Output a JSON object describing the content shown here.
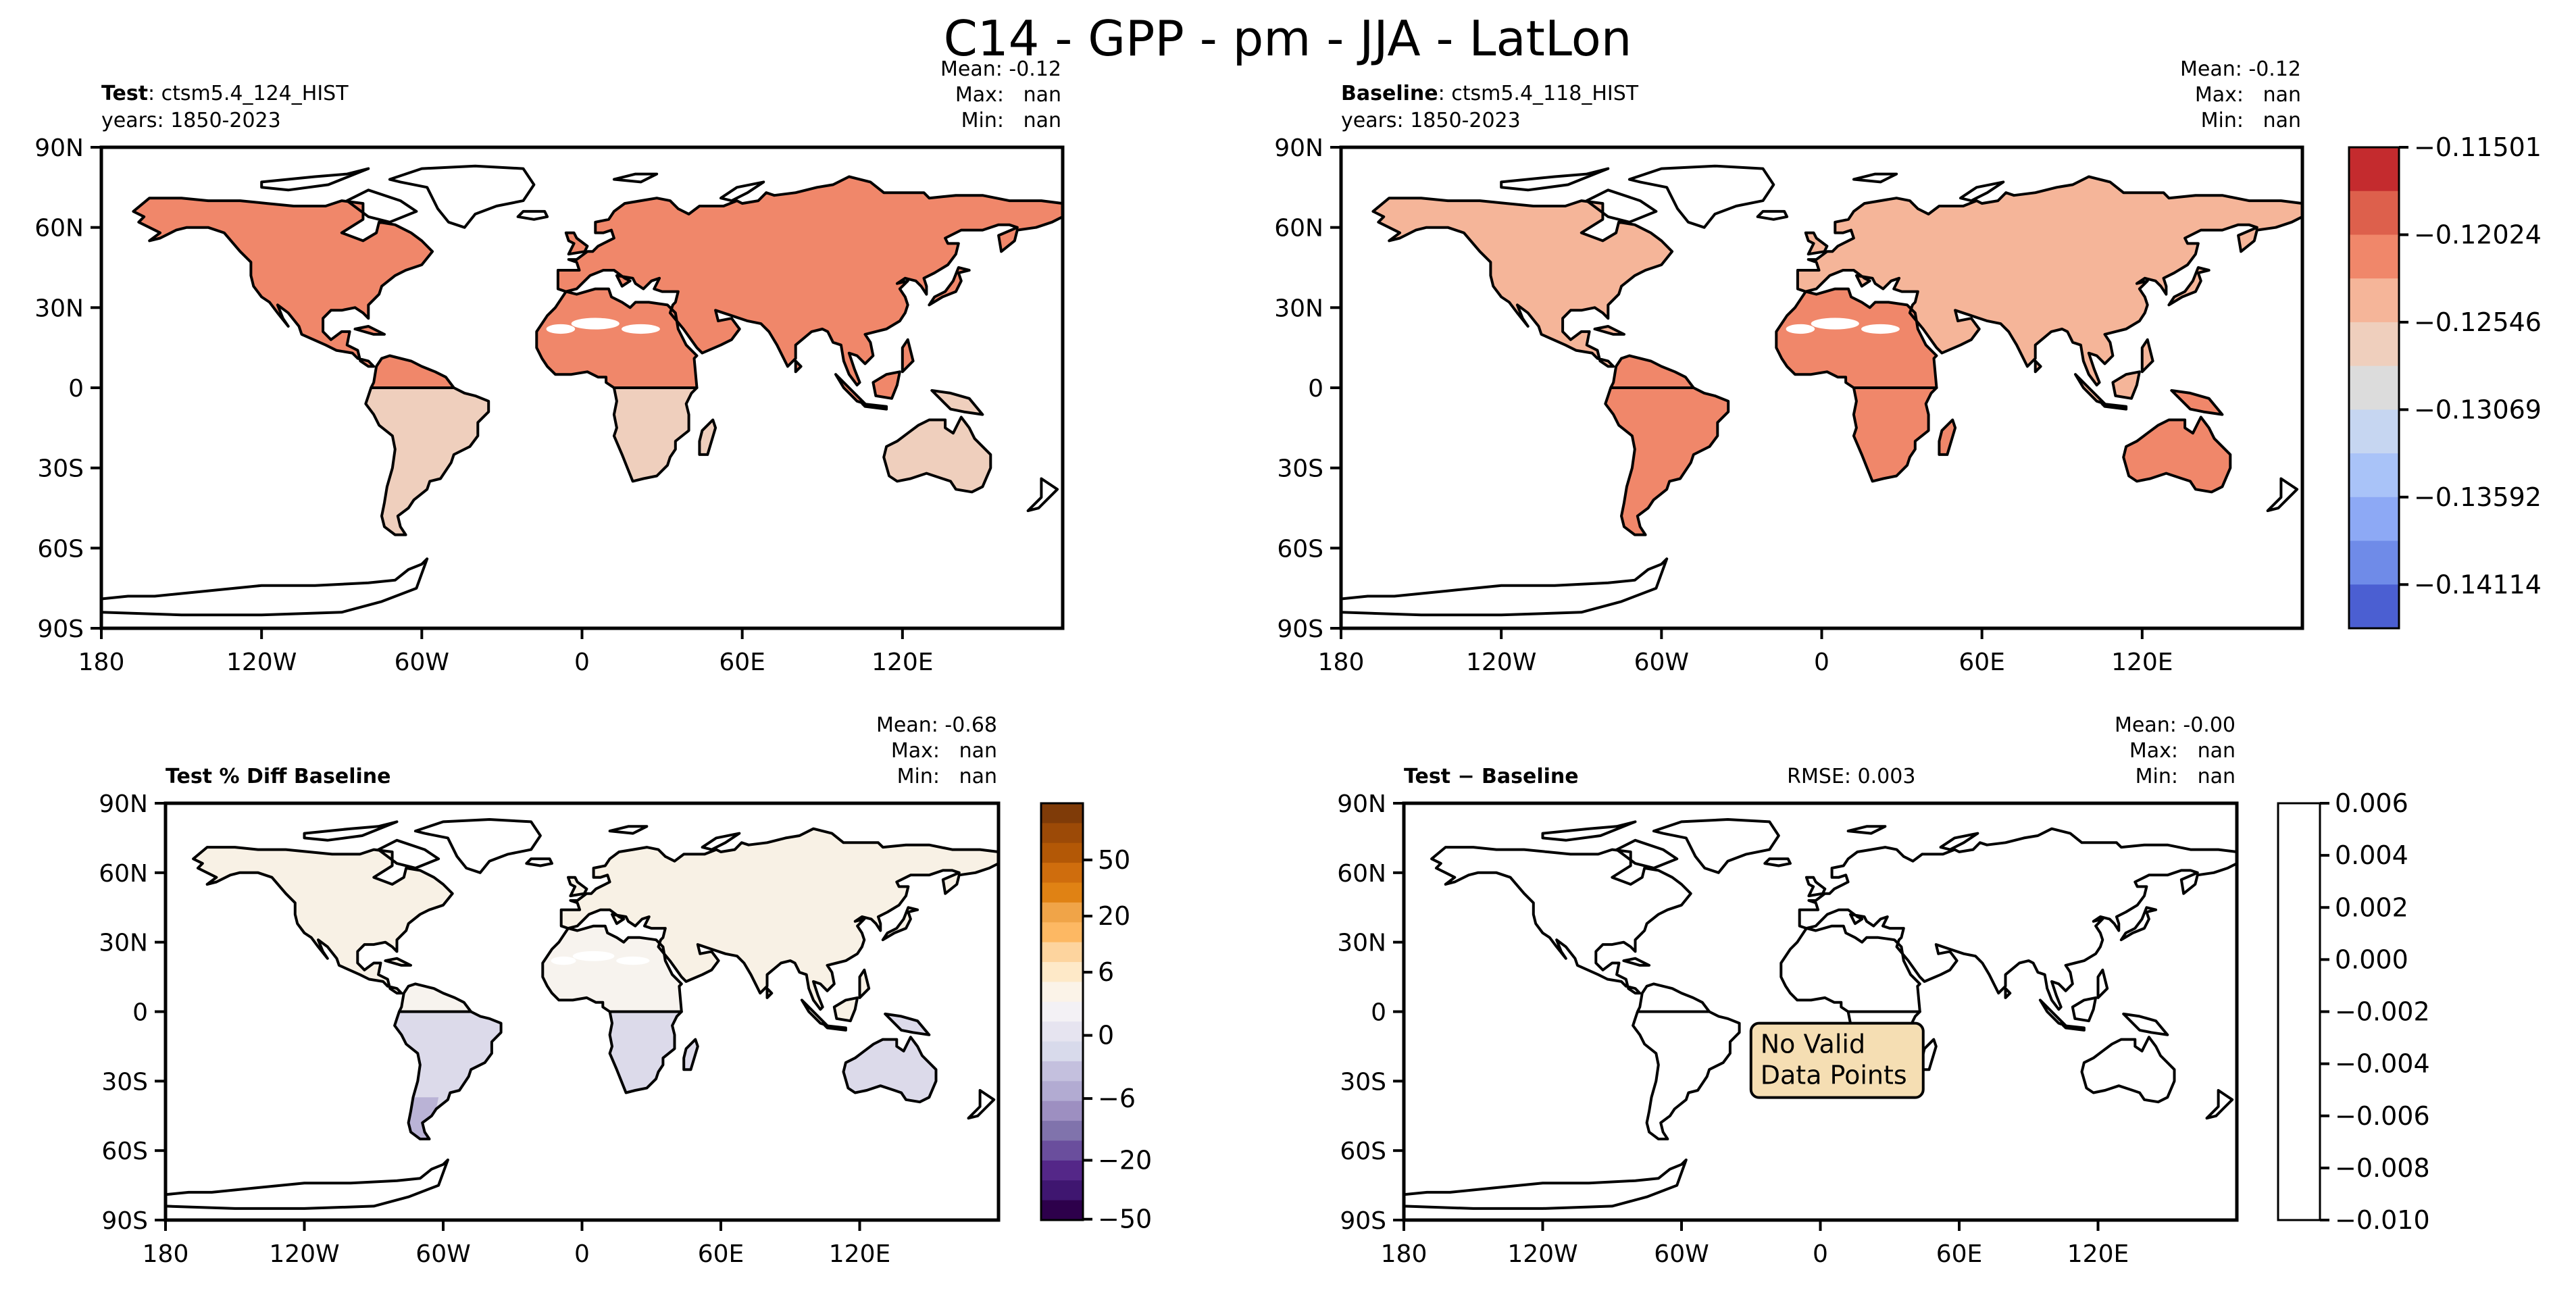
{
  "figure_title": "C14 - GPP - pm - JJA - LatLon",
  "chart_data": [
    {
      "type": "heatmap",
      "panel": "test",
      "title_bold": "Test",
      "title_rest": ": ctsm5.4_124_HIST",
      "years": "years: 1850-2023",
      "stats": {
        "mean": "Mean: -0.12",
        "max": "Max:   nan",
        "min": "Min:   nan"
      },
      "x_ticks": [
        "180",
        "120W",
        "60W",
        "0",
        "60E",
        "120E"
      ],
      "y_ticks": [
        "90N",
        "60N",
        "30N",
        "0",
        "30S",
        "60S",
        "90S"
      ],
      "xlim": [
        -180,
        180
      ],
      "ylim": [
        -90,
        90
      ],
      "regions": [
        {
          "name": "north_america",
          "value": -0.12
        },
        {
          "name": "greenland_ice",
          "value": null
        },
        {
          "name": "eurasia",
          "value": -0.12
        },
        {
          "name": "north_africa",
          "value": -0.12
        },
        {
          "name": "south_america",
          "value": -0.1275
        },
        {
          "name": "southern_africa",
          "value": -0.1275
        },
        {
          "name": "australia",
          "value": -0.1275
        },
        {
          "name": "antarctica",
          "value": null
        }
      ]
    },
    {
      "type": "heatmap",
      "panel": "baseline",
      "title_bold": "Baseline",
      "title_rest": ": ctsm5.4_118_HIST",
      "years": "years: 1850-2023",
      "stats": {
        "mean": "Mean: -0.12",
        "max": "Max:   nan",
        "min": "Min:   nan"
      },
      "x_ticks": [
        "180",
        "120W",
        "60W",
        "0",
        "60E",
        "120E"
      ],
      "y_ticks": [
        "90N",
        "60N",
        "30N",
        "0",
        "30S",
        "60S",
        "90S"
      ],
      "xlim": [
        -180,
        180
      ],
      "ylim": [
        -90,
        90
      ],
      "regions": [
        {
          "name": "north_america",
          "value": -0.1225
        },
        {
          "name": "greenland_ice",
          "value": null
        },
        {
          "name": "eurasia",
          "value": -0.1225
        },
        {
          "name": "north_africa",
          "value": -0.12
        },
        {
          "name": "south_america",
          "value": -0.12
        },
        {
          "name": "southern_africa",
          "value": -0.12
        },
        {
          "name": "australia",
          "value": -0.12
        },
        {
          "name": "antarctica",
          "value": null
        }
      ],
      "colorbar": {
        "tick_labels": [
          "−0.11501",
          "−0.12024",
          "−0.12546",
          "−0.13069",
          "−0.13592",
          "−0.14114"
        ],
        "colors": [
          "#c42b2e",
          "#dd604c",
          "#f0876a",
          "#f5b599",
          "#efcfbd",
          "#dcdcdc",
          "#c6d6f1",
          "#a9c3f8",
          "#8da9f5",
          "#6f8be8",
          "#4b5fd2"
        ]
      }
    },
    {
      "type": "heatmap",
      "panel": "pct_diff",
      "title_bold": "Test % Diff Baseline",
      "stats": {
        "mean": "Mean: -0.68",
        "max": "Max:   nan",
        "min": "Min:   nan"
      },
      "x_ticks": [
        "180",
        "120W",
        "60W",
        "0",
        "60E",
        "120E"
      ],
      "y_ticks": [
        "90N",
        "60N",
        "30N",
        "0",
        "30S",
        "60S",
        "90S"
      ],
      "xlim": [
        -180,
        180
      ],
      "ylim": [
        -90,
        90
      ],
      "regions": [
        {
          "name": "north_america",
          "value": 2
        },
        {
          "name": "eurasia",
          "value": 2
        },
        {
          "name": "north_africa",
          "value": 0.5
        },
        {
          "name": "south_america",
          "value": -4
        },
        {
          "name": "patagonia",
          "value": -8
        },
        {
          "name": "southern_africa",
          "value": -4
        },
        {
          "name": "australia",
          "value": -4
        }
      ],
      "colorbar": {
        "tick_labels": [
          "50",
          "20",
          "6",
          "0",
          "−6",
          "−20",
          "−50"
        ],
        "colors": [
          "#7f3b08",
          "#9c4a07",
          "#b35806",
          "#cf6d0d",
          "#e08214",
          "#f0a448",
          "#fdb863",
          "#fdd49e",
          "#fee9c8",
          "#fbf3e8",
          "#f3f1f5",
          "#e6e4f0",
          "#d8daeb",
          "#c4c0de",
          "#b2abd2",
          "#9d8fc1",
          "#8073ac",
          "#6a4e9d",
          "#542788",
          "#3f1670",
          "#2d004b"
        ]
      }
    },
    {
      "type": "heatmap",
      "panel": "difference",
      "title_bold": "Test − Baseline",
      "rmse": "RMSE: 0.003",
      "stats": {
        "mean": "Mean: -0.00",
        "max": "Max:   nan",
        "min": "Min:   nan"
      },
      "x_ticks": [
        "180",
        "120W",
        "60W",
        "0",
        "60E",
        "120E"
      ],
      "y_ticks": [
        "90N",
        "60N",
        "30N",
        "0",
        "30S",
        "60S",
        "90S"
      ],
      "xlim": [
        -180,
        180
      ],
      "ylim": [
        -90,
        90
      ],
      "annotation": [
        "No Valid",
        "Data Points"
      ],
      "colorbar": {
        "tick_labels": [
          "0.006",
          "0.004",
          "0.002",
          "0.000",
          "−0.002",
          "−0.004",
          "−0.006",
          "−0.008",
          "−0.010"
        ],
        "colors": [
          "#ffffff"
        ]
      }
    }
  ]
}
